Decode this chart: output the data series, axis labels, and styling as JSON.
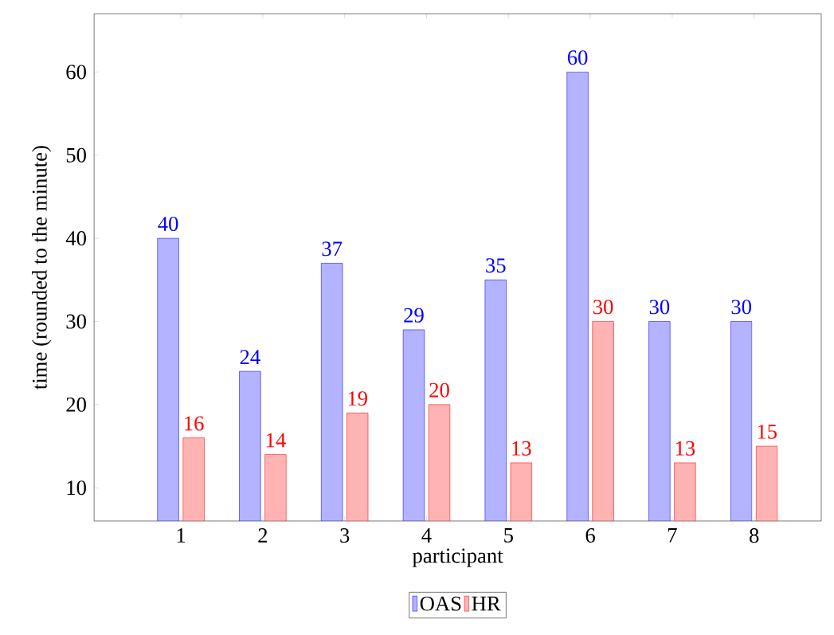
{
  "chart_data": {
    "type": "bar",
    "xlabel": "participant",
    "ylabel": "time (rounded to the minute)",
    "categories": [
      "1",
      "2",
      "3",
      "4",
      "5",
      "6",
      "7",
      "8"
    ],
    "series": [
      {
        "name": "OAS",
        "color": "#b3b3ff",
        "values": [
          40,
          24,
          37,
          29,
          35,
          60,
          30,
          30
        ]
      },
      {
        "name": "HR",
        "color": "#ffb3b3",
        "values": [
          16,
          14,
          19,
          20,
          13,
          30,
          13,
          15
        ]
      }
    ],
    "ylim": [
      6,
      67
    ],
    "yticks": [
      10,
      20,
      30,
      40,
      50,
      60
    ],
    "data_labels": true,
    "legend": "bottom",
    "grid": false
  }
}
